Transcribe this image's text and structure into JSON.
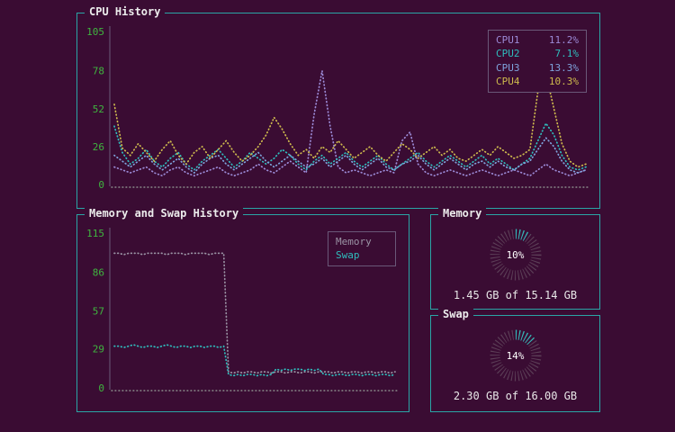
{
  "colors": {
    "background": "#3a0c33",
    "panel_border": "#2aa6a6",
    "title": "#ececec",
    "tick": "#3fb53f",
    "baseline": "#8a8a8a",
    "axis": "#6b5b78",
    "cpu1": "#9b8ad6",
    "cpu2": "#2fbdbd",
    "cpu3": "#7fa3dc",
    "cpu4": "#cdb94d",
    "memory_line": "#9a93a4",
    "swap_line": "#2fbdbd",
    "donut_track": "#5c3f57",
    "donut_used": "#2fbdbd"
  },
  "panels": {
    "cpu": {
      "title": "CPU History",
      "legend": [
        {
          "label": "CPU1",
          "value": "11.2%"
        },
        {
          "label": "CPU2",
          "value": "7.1%"
        },
        {
          "label": "CPU3",
          "value": "13.3%"
        },
        {
          "label": "CPU4",
          "value": "10.3%"
        }
      ]
    },
    "history": {
      "title": "Memory and Swap History",
      "legend": [
        {
          "label": "Memory"
        },
        {
          "label": "Swap"
        }
      ]
    },
    "memory": {
      "title": "Memory",
      "percent": "10%",
      "detail": "1.45 GB of 15.14 GB"
    },
    "swap": {
      "title": "Swap",
      "percent": "14%",
      "detail": "2.30 GB of 16.00 GB"
    }
  },
  "chart_data": [
    {
      "type": "line",
      "title": "CPU History",
      "ylim": [
        0,
        105
      ],
      "yticks": [
        0,
        26,
        52,
        78,
        105
      ],
      "legend_position": "top-right",
      "grid": false,
      "series": [
        {
          "name": "CPU1",
          "current": "11.2%",
          "color": "#9b8ad6",
          "values": [
            12,
            10,
            8,
            10,
            12,
            8,
            6,
            10,
            12,
            8,
            6,
            8,
            10,
            12,
            8,
            6,
            8,
            10,
            14,
            10,
            8,
            12,
            16,
            12,
            8,
            48,
            78,
            40,
            12,
            8,
            10,
            8,
            6,
            8,
            10,
            8,
            30,
            36,
            14,
            8,
            6,
            8,
            10,
            8,
            6,
            8,
            10,
            8,
            6,
            8,
            10,
            8,
            6,
            10,
            14,
            10,
            8,
            6,
            8,
            10
          ]
        },
        {
          "name": "CPU2",
          "current": "7.1%",
          "color": "#2fbdbd",
          "values": [
            40,
            22,
            14,
            18,
            24,
            16,
            12,
            18,
            22,
            14,
            10,
            16,
            20,
            24,
            18,
            12,
            16,
            22,
            18,
            14,
            18,
            24,
            20,
            14,
            10,
            16,
            20,
            14,
            18,
            22,
            16,
            12,
            16,
            20,
            14,
            10,
            14,
            18,
            22,
            16,
            12,
            16,
            20,
            16,
            12,
            16,
            20,
            14,
            18,
            14,
            10,
            14,
            18,
            30,
            42,
            34,
            20,
            12,
            10,
            12
          ]
        },
        {
          "name": "CPU3",
          "current": "13.3%",
          "color": "#7fa3dc",
          "values": [
            20,
            16,
            12,
            16,
            20,
            14,
            10,
            14,
            18,
            12,
            8,
            14,
            18,
            20,
            14,
            10,
            14,
            18,
            22,
            16,
            12,
            16,
            20,
            16,
            12,
            14,
            18,
            12,
            16,
            20,
            14,
            10,
            14,
            18,
            12,
            10,
            14,
            16,
            20,
            14,
            10,
            14,
            18,
            14,
            10,
            14,
            16,
            12,
            16,
            12,
            10,
            14,
            16,
            24,
            32,
            26,
            16,
            10,
            8,
            10
          ]
        },
        {
          "name": "CPU4",
          "current": "10.3%",
          "color": "#cdb94d",
          "values": [
            55,
            25,
            20,
            28,
            22,
            16,
            24,
            30,
            20,
            14,
            22,
            26,
            18,
            24,
            30,
            22,
            16,
            20,
            26,
            34,
            46,
            38,
            28,
            20,
            24,
            18,
            26,
            22,
            30,
            24,
            18,
            22,
            26,
            20,
            16,
            22,
            28,
            24,
            18,
            22,
            26,
            20,
            24,
            18,
            16,
            20,
            24,
            20,
            26,
            22,
            18,
            20,
            24,
            64,
            76,
            52,
            28,
            16,
            12,
            14
          ]
        }
      ]
    },
    {
      "type": "line",
      "title": "Memory and Swap History",
      "ylim": [
        0,
        115
      ],
      "yticks": [
        0,
        29,
        57,
        86,
        115
      ],
      "legend_position": "top-right",
      "grid": false,
      "series": [
        {
          "name": "Memory",
          "color": "#9a93a4",
          "values": [
            100,
            100,
            99,
            100,
            100,
            100,
            99,
            100,
            100,
            100,
            100,
            99,
            100,
            100,
            100,
            99,
            100,
            100,
            100,
            100,
            99,
            100,
            100,
            100,
            12,
            11,
            12,
            11,
            12,
            12,
            11,
            12,
            12,
            11,
            12,
            12,
            11,
            12,
            12,
            11,
            12,
            12,
            11,
            12,
            12,
            12,
            11,
            12,
            12,
            11,
            12,
            12,
            11,
            12,
            12,
            11,
            12,
            12,
            11,
            12
          ]
        },
        {
          "name": "Swap",
          "color": "#2fbdbd",
          "values": [
            31,
            31,
            30,
            31,
            32,
            31,
            30,
            31,
            31,
            30,
            31,
            32,
            31,
            30,
            31,
            31,
            30,
            31,
            31,
            30,
            31,
            31,
            30,
            31,
            10,
            9,
            10,
            9,
            10,
            10,
            9,
            10,
            9,
            10,
            14,
            13,
            14,
            13,
            14,
            14,
            13,
            14,
            13,
            14,
            10,
            10,
            9,
            10,
            10,
            9,
            10,
            10,
            9,
            10,
            10,
            9,
            10,
            10,
            9,
            10
          ]
        }
      ]
    },
    {
      "type": "pie",
      "title": "Memory",
      "percent": 10,
      "label": "10%",
      "detail": "1.45 GB of 15.14 GB",
      "color": "#2fbdbd",
      "track_color": "#5c3f57"
    },
    {
      "type": "pie",
      "title": "Swap",
      "percent": 14,
      "label": "14%",
      "detail": "2.30 GB of 16.00 GB",
      "color": "#2fbdbd",
      "track_color": "#5c3f57"
    }
  ]
}
